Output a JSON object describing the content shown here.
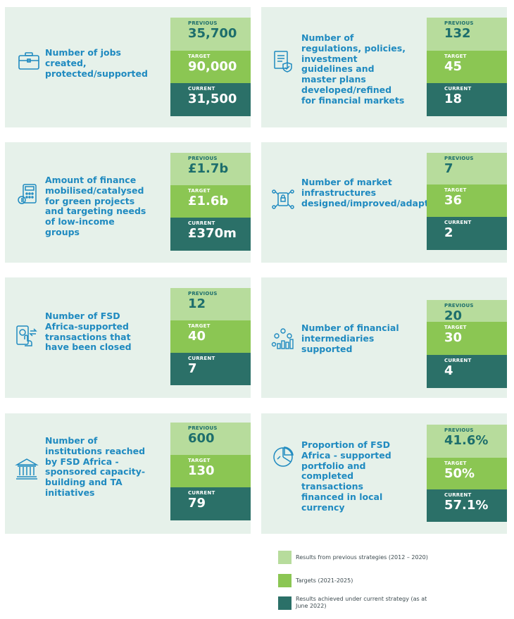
{
  "caption_labels": {
    "previous": "PREVIOUS",
    "target": "TARGET",
    "current": "CURRENT"
  },
  "colors": {
    "card_bg": "#e6f1ea",
    "label_text": "#1f8ac0",
    "previous": "#b7dc9c",
    "target": "#8bc653",
    "current": "#2b7068"
  },
  "cards": [
    {
      "label": "Number of jobs created, protected/supported",
      "icon": "briefcase-icon",
      "previous": "35,700",
      "target": "90,000",
      "current": "31,500"
    },
    {
      "label": "Number of regulations, policies, investment guidelines and master plans developed/refined for financial markets",
      "icon": "policy-document-icon",
      "previous": "132",
      "target": "45",
      "current": "18"
    },
    {
      "label": "Amount of finance mobilised/catalysed for green projects and targeting needs of low-income groups",
      "icon": "finance-calculator-icon",
      "previous": "£1.7b",
      "target": "£1.6b",
      "current": "£370m"
    },
    {
      "label": "Number of market infrastructures designed/improved/adapted",
      "icon": "infrastructure-lock-icon",
      "previous": "7",
      "target": "36",
      "current": "2"
    },
    {
      "label": "Number of FSD Africa-supported transactions that have been closed",
      "icon": "mobile-transaction-icon",
      "previous": "12",
      "target": "40",
      "current": "7"
    },
    {
      "label": "Number of financial intermediaries supported",
      "icon": "intermediaries-chart-icon",
      "previous": "20",
      "target": "30",
      "current": "4"
    },
    {
      "label": "Number of institutions reached by FSD Africa - sponsored capacity-building and TA initiatives",
      "icon": "institution-building-icon",
      "previous": "600",
      "target": "130",
      "current": "79"
    },
    {
      "label": "Proportion of FSD Africa - supported portfolio and completed transactions financed in local currency",
      "icon": "pie-chart-icon",
      "previous": "41.6%",
      "target": "50%",
      "current": "57.1%"
    }
  ],
  "legend": [
    {
      "text": "Results from previous strategies (2012 – 2020)"
    },
    {
      "text": "Targets (2021-2025)"
    },
    {
      "text": "Results achieved under current strategy (as at June 2022)"
    }
  ]
}
